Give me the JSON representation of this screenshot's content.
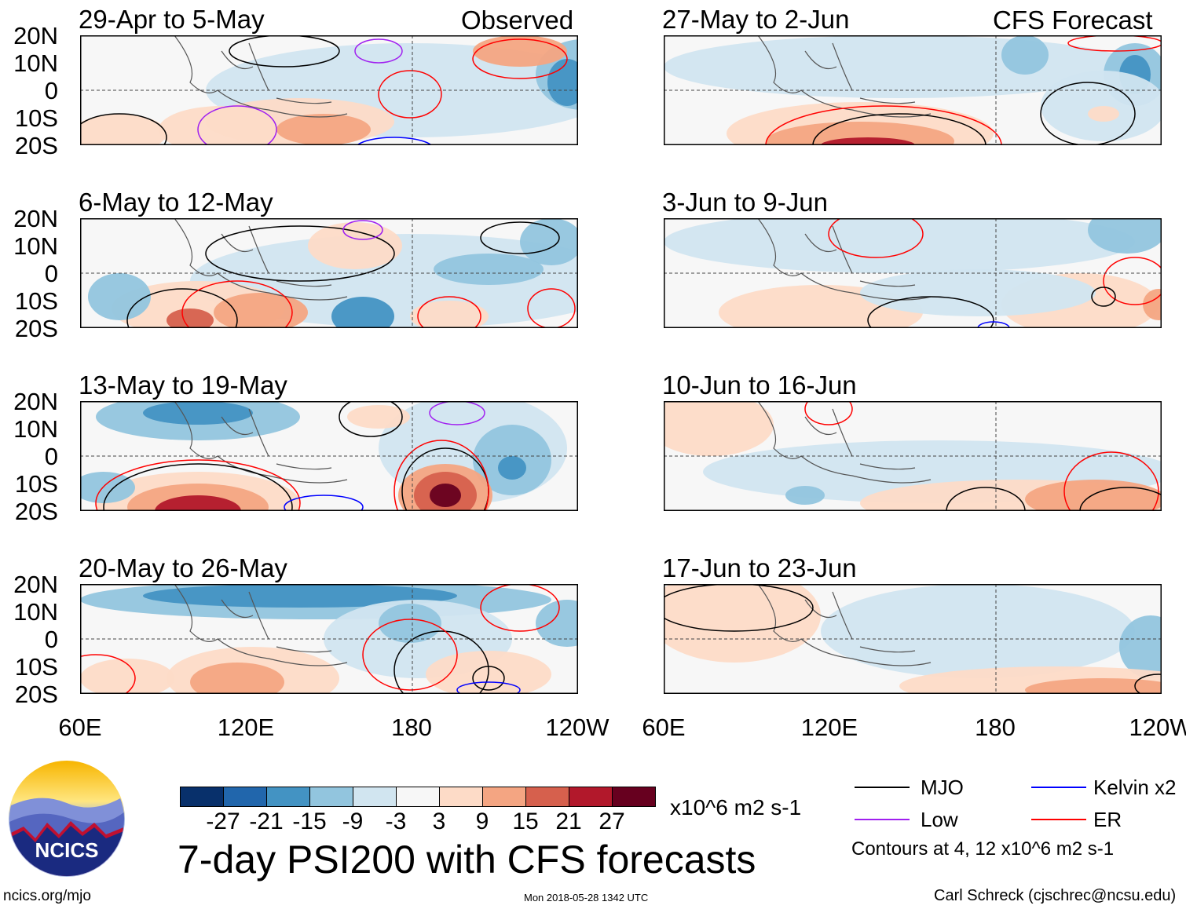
{
  "chart_data": {
    "type": "heatmap",
    "title": "7-day PSI200 with CFS forecasts",
    "units": "x10^6 m2 s-1",
    "column_labels": {
      "observed": "Observed",
      "forecast": "CFS Forecast"
    },
    "yticks": [
      "20N",
      "10N",
      "0",
      "10S",
      "20S"
    ],
    "xticks": [
      "60E",
      "120E",
      "180",
      "120W"
    ],
    "ylim": [
      -20,
      20
    ],
    "xlim": [
      60,
      240
    ],
    "panels": [
      {
        "label": "29-Apr to 5-May",
        "kind": "observed"
      },
      {
        "label": "6-May to 12-May",
        "kind": "observed"
      },
      {
        "label": "13-May to 19-May",
        "kind": "observed"
      },
      {
        "label": "20-May to 26-May",
        "kind": "observed"
      },
      {
        "label": "27-May to 2-Jun",
        "kind": "forecast"
      },
      {
        "label": "3-Jun to 9-Jun",
        "kind": "forecast"
      },
      {
        "label": "10-Jun to 16-Jun",
        "kind": "forecast"
      },
      {
        "label": "17-Jun to 23-Jun",
        "kind": "forecast"
      }
    ],
    "colorbar": {
      "levels": [
        "-27",
        "-21",
        "-15",
        "-9",
        "-3",
        "3",
        "9",
        "15",
        "21",
        "27"
      ],
      "colors": [
        "#08306b",
        "#2166ac",
        "#4393c3",
        "#92c5de",
        "#d1e5f0",
        "#f7f7f7",
        "#fddbc7",
        "#f4a582",
        "#d6604d",
        "#b2182b",
        "#67001f"
      ]
    },
    "legend": [
      {
        "label": "MJO",
        "color": "#000000"
      },
      {
        "label": "Kelvin x2",
        "color": "#0000ff"
      },
      {
        "label": "Low",
        "color": "#a020f0"
      },
      {
        "label": "ER",
        "color": "#ff0000"
      }
    ],
    "contour_note": "Contours at 4, 12 x10^6 m2 s-1"
  },
  "footer": {
    "site": "ncics.org/mjo",
    "timestamp": "Mon 2018-05-28 1342 UTC",
    "author": "Carl Schreck (cjschrec@ncsu.edu)",
    "logo_text": "NCICS"
  }
}
